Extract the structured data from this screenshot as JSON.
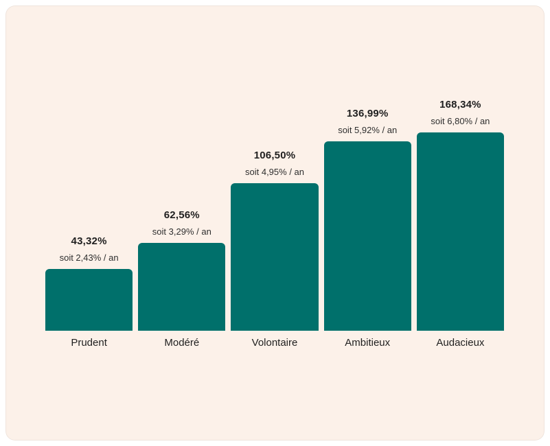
{
  "colors": {
    "page_background": "#FFFFFF",
    "card_background": "#FCF1E9",
    "bar": "#00706B",
    "text": "#1F1F1F"
  },
  "chart_data": {
    "type": "bar",
    "title": "",
    "xlabel": "",
    "ylabel": "",
    "grid": false,
    "axis_lines": false,
    "legend": false,
    "ylim": [
      0,
      168.34
    ],
    "categories": [
      "Prudent",
      "Modéré",
      "Volontaire",
      "Ambitieux",
      "Audacieux"
    ],
    "values": [
      43.32,
      62.56,
      106.5,
      136.99,
      168.34
    ],
    "value_labels": [
      "43,32%",
      "62,56%",
      "106,50%",
      "136,99%",
      "168,34%"
    ],
    "sub_labels": [
      "soit 2,43% / an",
      "soit 3,29% / an",
      "soit 4,95% / an",
      "soit 5,92% / an",
      "soit 6,80% / an"
    ],
    "annual_rates_percent": [
      2.43,
      3.29,
      4.95,
      5.92,
      6.8
    ],
    "bar_color": "#00706B"
  }
}
